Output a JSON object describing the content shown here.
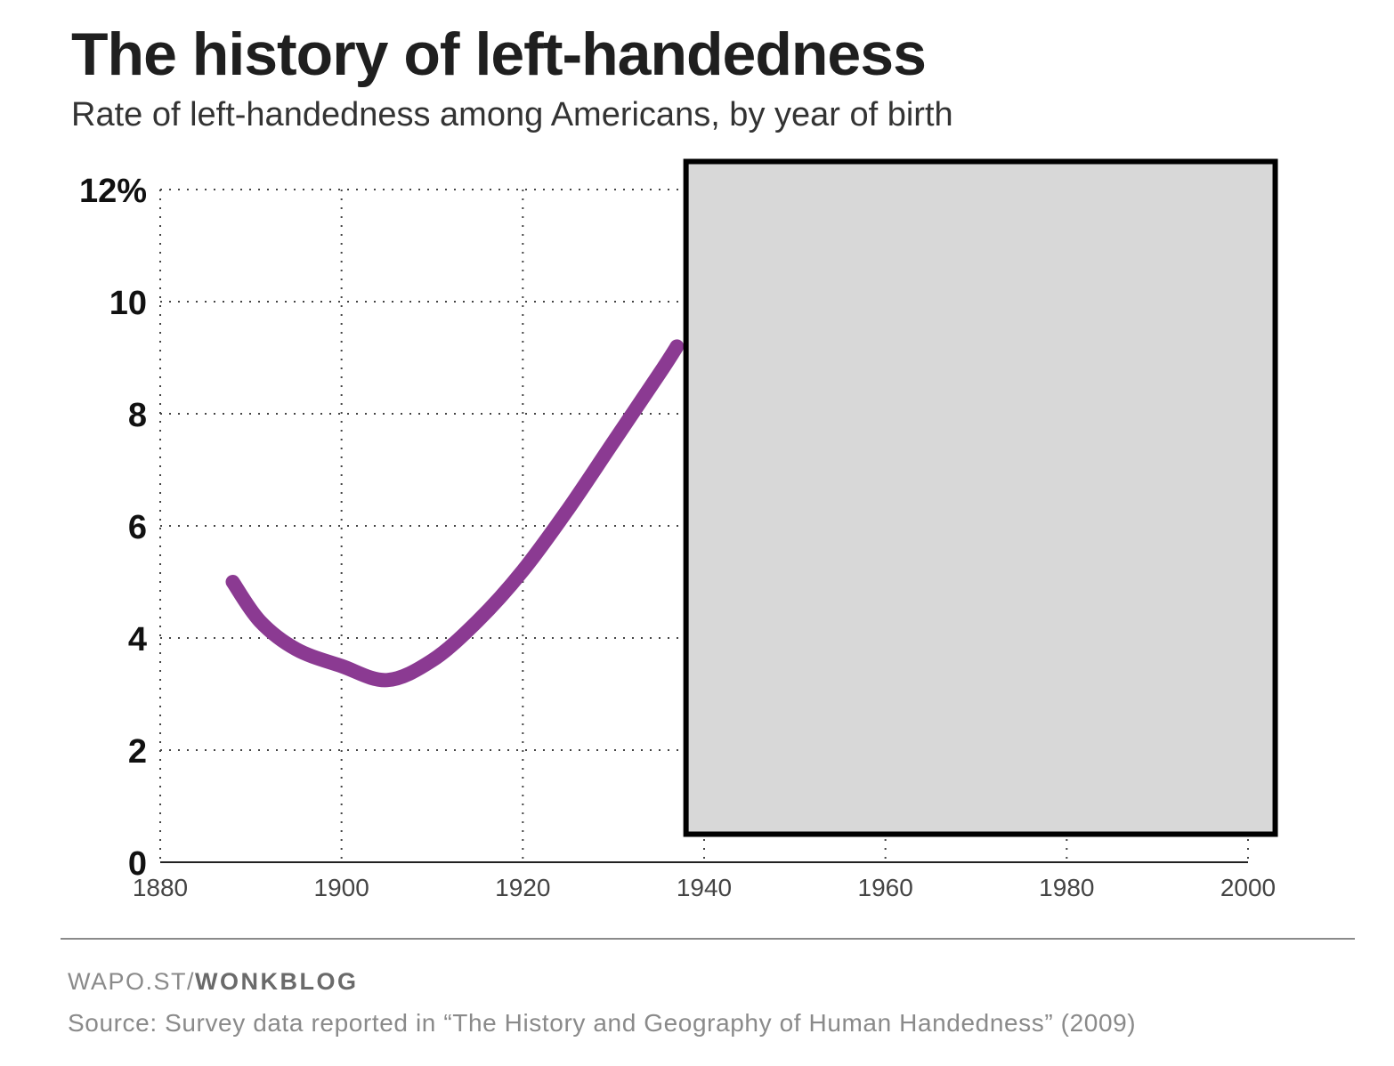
{
  "header": {
    "title": "The history of left-handedness",
    "subtitle": "Rate of left-handedness among Americans, by year of birth"
  },
  "chart_data": {
    "type": "line",
    "title": "The history of left-handedness",
    "subtitle": "Rate of left-handedness among Americans, by year of birth",
    "xlabel": "",
    "ylabel": "",
    "xlim": [
      1880,
      2000
    ],
    "ylim": [
      0,
      12
    ],
    "x_ticks": [
      1880,
      1900,
      1920,
      1940,
      1960,
      1980,
      2000
    ],
    "x_tick_labels": [
      "1880",
      "1900",
      "1920",
      "1940",
      "1960",
      "1980",
      "2000"
    ],
    "y_ticks": [
      0,
      2,
      4,
      6,
      8,
      10,
      12
    ],
    "y_tick_labels": [
      "0",
      "2",
      "4",
      "6",
      "8",
      "10",
      "12%"
    ],
    "grid": true,
    "series": [
      {
        "color": "#8b3a92",
        "x": [
          1888,
          1891,
          1895,
          1900,
          1905,
          1910,
          1915,
          1920,
          1925,
          1930,
          1935,
          1937
        ],
        "y": [
          5.0,
          4.3,
          3.8,
          3.5,
          3.25,
          3.6,
          4.3,
          5.2,
          6.3,
          7.5,
          8.7,
          9.2
        ]
      }
    ],
    "occluder": {
      "x_from": 1938,
      "x_to": 2003,
      "y_from": 0.5,
      "y_to": 12.5,
      "fill": "#d8d8d8"
    }
  },
  "footer": {
    "brand_prefix": "WAPO.ST/",
    "brand_name": "WONKBLOG",
    "source": "Source: Survey data reported in “The History and Geography of Human Handedness” (2009)"
  }
}
